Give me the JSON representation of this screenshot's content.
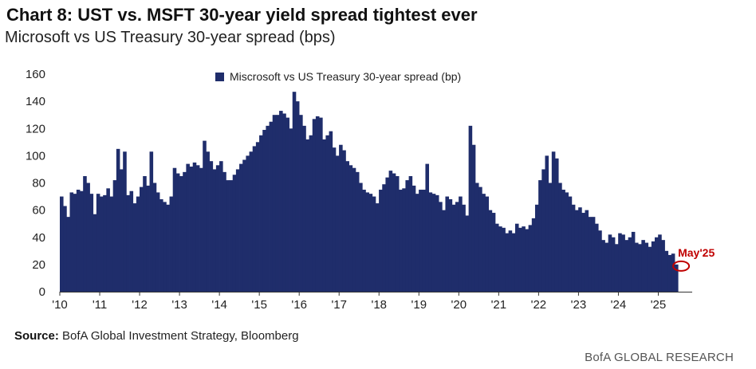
{
  "header": {
    "title": "Chart 8: UST vs. MSFT 30-year yield spread tightest ever",
    "subtitle": "Microsoft vs US Treasury 30-year spread (bps)"
  },
  "footer": {
    "source_label": "Source:",
    "source_text": "BofA Global Investment Strategy, Bloomberg",
    "brand": "BofA GLOBAL RESEARCH"
  },
  "colors": {
    "bar": "#1f2d6b",
    "annotation": "#c00000",
    "text": "#222222"
  },
  "chart_data": {
    "type": "bar",
    "title": "Chart 8: UST vs. MSFT 30-year yield spread tightest ever",
    "subtitle": "Microsoft vs US Treasury 30-year spread (bps)",
    "xlabel": "",
    "ylabel": "",
    "ylim": [
      0,
      160
    ],
    "yticks": [
      0,
      20,
      40,
      60,
      80,
      100,
      120,
      140,
      160
    ],
    "xticks": [
      "'10",
      "'11",
      "'12",
      "'13",
      "'14",
      "'15",
      "'16",
      "'17",
      "'18",
      "'19",
      "'20",
      "'21",
      "'22",
      "'23",
      "'24",
      "'25"
    ],
    "x_start": 2010.0,
    "x_step": 0.0833,
    "legend": {
      "label": "Miscrosoft vs US Treasury 30-year spread (bp)",
      "position": "top-center"
    },
    "annotation": {
      "label": "May'25",
      "value": 20
    },
    "series": [
      {
        "name": "Miscrosoft vs US Treasury 30-year spread (bp)",
        "values": [
          70,
          63,
          55,
          73,
          72,
          75,
          74,
          85,
          80,
          72,
          57,
          72,
          70,
          71,
          76,
          70,
          82,
          105,
          90,
          103,
          71,
          74,
          65,
          70,
          77,
          85,
          78,
          103,
          80,
          73,
          68,
          66,
          64,
          70,
          91,
          87,
          85,
          88,
          94,
          92,
          95,
          93,
          91,
          111,
          103,
          96,
          90,
          93,
          96,
          88,
          82,
          82,
          86,
          90,
          94,
          97,
          100,
          103,
          107,
          110,
          115,
          119,
          122,
          125,
          130,
          130,
          133,
          131,
          128,
          120,
          147,
          140,
          130,
          122,
          112,
          115,
          127,
          129,
          128,
          112,
          115,
          118,
          106,
          100,
          108,
          104,
          96,
          93,
          91,
          88,
          80,
          75,
          73,
          72,
          70,
          65,
          75,
          79,
          84,
          89,
          87,
          85,
          75,
          76,
          82,
          85,
          78,
          72,
          75,
          75,
          94,
          73,
          72,
          71,
          66,
          60,
          70,
          68,
          64,
          66,
          70,
          64,
          56,
          122,
          108,
          80,
          77,
          72,
          70,
          60,
          58,
          50,
          48,
          47,
          43,
          45,
          43,
          50,
          47,
          48,
          46,
          49,
          54,
          64,
          82,
          90,
          100,
          80,
          103,
          98,
          80,
          75,
          73,
          70,
          64,
          60,
          62,
          58,
          60,
          55,
          55,
          50,
          45,
          38,
          36,
          42,
          40,
          35,
          43,
          42,
          38,
          40,
          44,
          36,
          35,
          38,
          36,
          33,
          37,
          40,
          42,
          38,
          30,
          27,
          28,
          20
        ]
      }
    ]
  }
}
